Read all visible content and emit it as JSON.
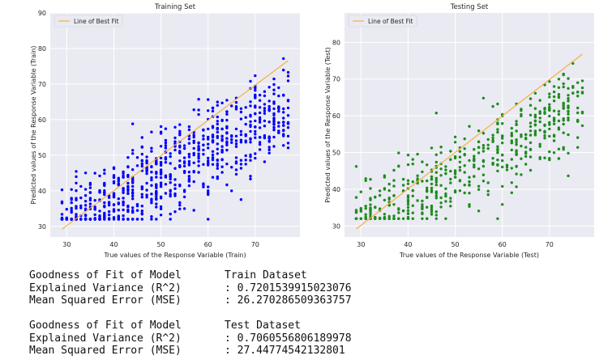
{
  "chart_data": [
    {
      "type": "scatter",
      "title": "Training Set",
      "xlabel": "True values of the Response Variable (Train)",
      "ylabel": "Predicted values of the Response Variable (Train)",
      "xlim": [
        26.5,
        79.5
      ],
      "ylim": [
        27,
        90
      ],
      "xticks": [
        30,
        40,
        50,
        60,
        70
      ],
      "yticks": [
        30,
        40,
        50,
        60,
        70,
        80,
        90
      ],
      "grid": true,
      "legend_position": "top-left",
      "background": "#eaeaf2",
      "point_color": "#0000ff",
      "line_color": "#f5b041",
      "line": {
        "name": "Line of Best Fit",
        "x": [
          29,
          77
        ],
        "y": [
          29.2,
          76.6
        ]
      },
      "point_count": 800,
      "points_summary": "dense vertical columns at integer x from 29 to 77; roughly y = 0.72x + 8 with spread of about ±10"
    },
    {
      "type": "scatter",
      "title": "Testing Set",
      "xlabel": "True values of the Response Variable (Test)",
      "ylabel": "Predicted values of the Response Variable (Test)",
      "xlim": [
        26.5,
        79.5
      ],
      "ylim": [
        27,
        88
      ],
      "xticks": [
        30,
        40,
        50,
        60,
        70
      ],
      "yticks": [
        30,
        40,
        50,
        60,
        70,
        80
      ],
      "grid": true,
      "legend_position": "top-left",
      "background": "#eaeaf2",
      "point_color": "#1e8c1e",
      "line_color": "#f5b041",
      "line": {
        "name": "Line of Best Fit",
        "x": [
          29,
          77
        ],
        "y": [
          29.2,
          76.8
        ]
      },
      "point_count": 560,
      "points_summary": "dense vertical columns at integer x from 29 to 77; roughly y = 0.72x + 8 with spread of about ±9"
    }
  ],
  "report": {
    "train": {
      "heading_label": "Goodness of Fit of Model",
      "heading_value": "Train Dataset",
      "r2_label": "Explained Variance (R^2)",
      "r2_value": ": 0.7201539915023076",
      "mse_label": "Mean Squared Error (MSE)",
      "mse_value": ": 26.270286509363757"
    },
    "test": {
      "heading_label": "Goodness of Fit of Model",
      "heading_value": "Test Dataset",
      "r2_label": "Explained Variance (R^2)",
      "r2_value": ": 0.7060556806189978",
      "mse_label": "Mean Squared Error (MSE)",
      "mse_value": ": 27.44774542132801"
    }
  }
}
